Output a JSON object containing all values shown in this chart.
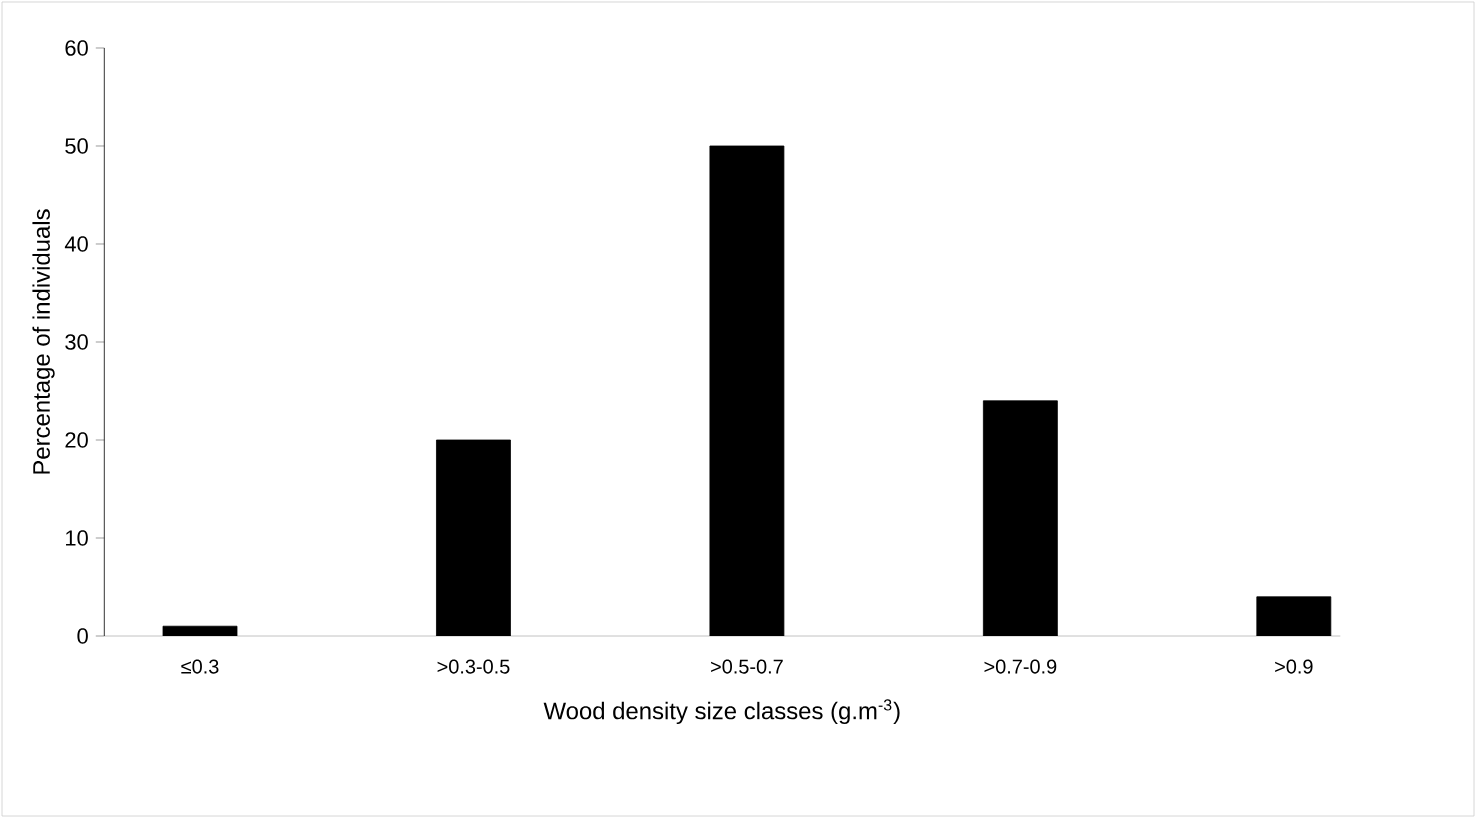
{
  "chart_data": {
    "type": "bar",
    "xlabel": "Wood density size classes (g.m$^{-3}$)",
    "ylabel": "Percentage of individuals",
    "categories": [
      "≤0.3",
      ">0.3-0.5",
      ">0.5-0.7",
      ">0.7-0.9",
      ">0.9"
    ],
    "values": [
      1,
      20,
      50,
      24,
      4
    ],
    "color": "#000000",
    "ylim": [
      0,
      60
    ],
    "yticks": [
      0,
      10,
      20,
      30,
      40,
      50,
      60
    ]
  }
}
